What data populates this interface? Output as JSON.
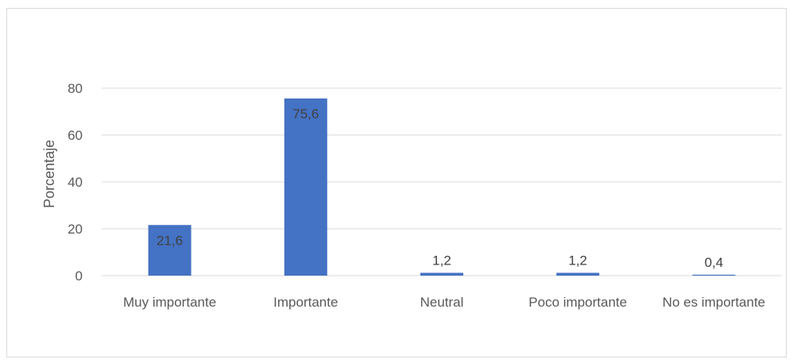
{
  "chart_data": {
    "type": "bar",
    "title": "",
    "xlabel": "",
    "ylabel": "Porcentaje",
    "categories": [
      "Muy importante",
      "Importante",
      "Neutral",
      "Poco importante",
      "No es importante"
    ],
    "values": [
      21.6,
      75.6,
      1.2,
      1.2,
      0.4
    ],
    "data_labels": [
      "21,6",
      "75,6",
      "1,2",
      "1,2",
      "0,4"
    ],
    "ylim": [
      0,
      80
    ],
    "yticks": [
      0,
      20,
      40,
      60,
      80
    ],
    "grid": true,
    "legend": "none",
    "bar_color": "#4472C4",
    "grid_color": "#d9d9d9"
  }
}
